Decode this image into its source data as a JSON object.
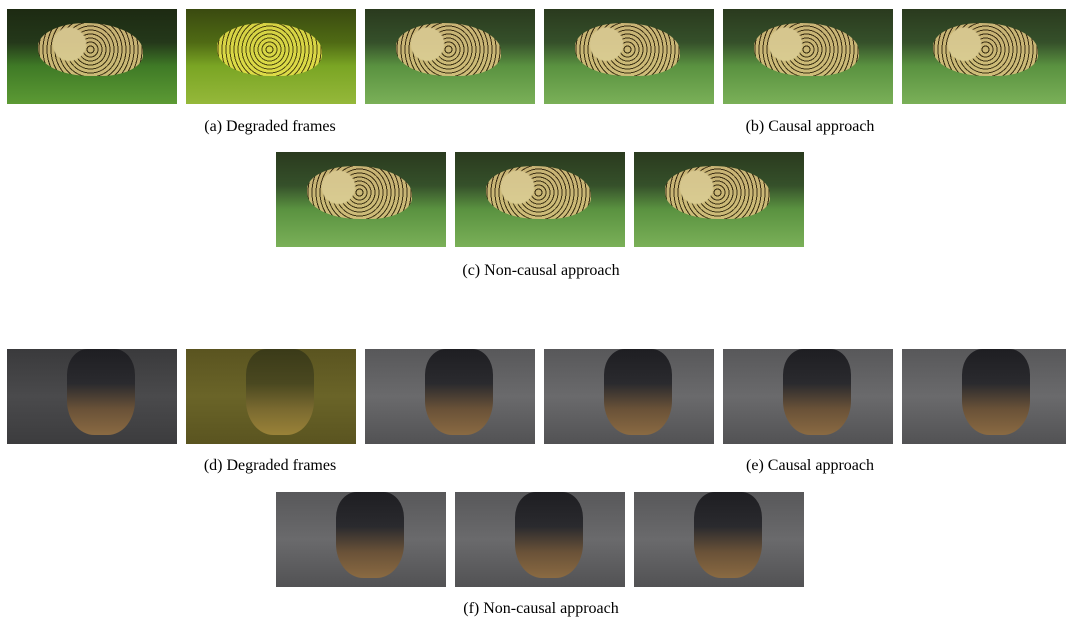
{
  "figures": [
    {
      "panels": [
        {
          "caption": "(a) Degraded frames"
        },
        {
          "caption": "(b) Causal approach"
        },
        {
          "caption": "(c) Non-causal approach"
        }
      ]
    },
    {
      "panels": [
        {
          "caption": "(d) Degraded frames"
        },
        {
          "caption": "(e) Causal approach"
        },
        {
          "caption": "(f) Non-causal approach"
        }
      ]
    }
  ]
}
